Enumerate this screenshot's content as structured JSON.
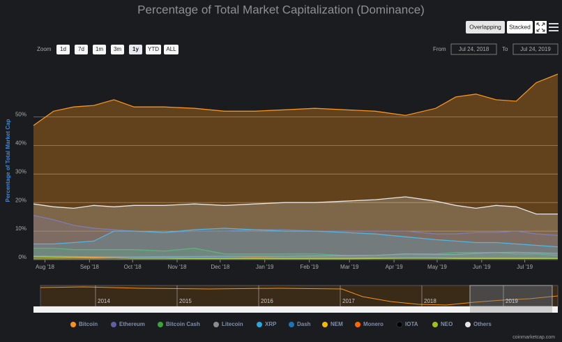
{
  "chart_data": {
    "type": "area",
    "title": "Percentage of Total Market Capitalization (Dominance)",
    "y_label": "Percentage of Total Market Cap",
    "x": [
      "2018-07-24",
      "2018-08-07",
      "2018-08-21",
      "2018-09-04",
      "2018-09-18",
      "2018-10-02",
      "2018-10-23",
      "2018-11-13",
      "2018-12-04",
      "2018-12-25",
      "2019-01-15",
      "2019-02-05",
      "2019-02-26",
      "2019-03-19",
      "2019-04-09",
      "2019-04-30",
      "2019-05-14",
      "2019-05-28",
      "2019-06-11",
      "2019-06-25",
      "2019-07-09",
      "2019-07-24"
    ],
    "xlim": [
      "2018-07-24",
      "2019-07-24"
    ],
    "xticks": [
      {
        "value": "2018-08-01",
        "label": "Aug '18"
      },
      {
        "value": "2018-09-01",
        "label": "Sep '18"
      },
      {
        "value": "2018-10-01",
        "label": "Oct '18"
      },
      {
        "value": "2018-11-01",
        "label": "Nov '18"
      },
      {
        "value": "2018-12-01",
        "label": "Dec '18"
      },
      {
        "value": "2019-01-01",
        "label": "Jan '19"
      },
      {
        "value": "2019-02-01",
        "label": "Feb '19"
      },
      {
        "value": "2019-03-01",
        "label": "Mar '19"
      },
      {
        "value": "2019-04-01",
        "label": "Apr '19"
      },
      {
        "value": "2019-05-01",
        "label": "May '19"
      },
      {
        "value": "2019-06-01",
        "label": "Jun '19"
      },
      {
        "value": "2019-07-01",
        "label": "Jul '19"
      }
    ],
    "ylim": [
      0,
      66.5
    ],
    "yticks": [
      {
        "value": 0,
        "label": "0%"
      },
      {
        "value": 10,
        "label": "10%"
      },
      {
        "value": 20,
        "label": "20%"
      },
      {
        "value": 30,
        "label": "30%"
      },
      {
        "value": 40,
        "label": "40%"
      },
      {
        "value": 50,
        "label": "50%"
      }
    ],
    "grid": true,
    "series": [
      {
        "name": "Bitcoin",
        "color": "#f7931a",
        "values": [
          47,
          52,
          53.5,
          54,
          56,
          53.5,
          53.5,
          53,
          52,
          52,
          52.5,
          53,
          52.5,
          52,
          50.5,
          53,
          57,
          58,
          56,
          55.5,
          62,
          65
        ]
      },
      {
        "name": "Ethereum",
        "color": "#5f5fa8",
        "values": [
          15.5,
          14,
          12,
          11,
          10.5,
          10,
          9.5,
          10,
          10,
          10.5,
          10.5,
          10,
          10,
          10,
          10,
          9,
          9,
          9.5,
          9.5,
          10,
          9,
          8.5
        ]
      },
      {
        "name": "Bitcoin Cash",
        "color": "#3aa33a",
        "values": [
          4,
          4,
          3.5,
          3.5,
          3.5,
          3.5,
          3,
          4,
          2,
          2,
          2,
          2,
          1.5,
          1.5,
          2,
          2,
          2.5,
          2.5,
          2.5,
          2,
          2,
          1.5
        ]
      },
      {
        "name": "Litecoin",
        "color": "#8c8c8c",
        "values": [
          1.2,
          1.2,
          1.1,
          1,
          1,
          1,
          1.1,
          1.1,
          1.2,
          1.2,
          1.2,
          1.3,
          1.4,
          1.5,
          2,
          1.8,
          1.8,
          2.2,
          2.5,
          2.6,
          2.4,
          2.2
        ]
      },
      {
        "name": "XRP",
        "color": "#2aa7e0",
        "values": [
          5.5,
          5.5,
          6,
          6.5,
          10,
          10,
          9.5,
          10.5,
          11,
          10.5,
          10,
          10,
          9.5,
          9,
          8,
          7,
          6.5,
          6,
          6,
          5.5,
          5,
          4.5
        ]
      },
      {
        "name": "Dash",
        "color": "#1c75bc",
        "values": [
          0.9,
          0.8,
          0.8,
          0.8,
          0.8,
          0.8,
          0.8,
          0.8,
          0.8,
          0.7,
          0.7,
          0.6,
          0.6,
          0.6,
          0.7,
          0.7,
          0.6,
          0.6,
          0.5,
          0.4,
          0.4,
          0.4
        ]
      },
      {
        "name": "NEM",
        "color": "#f5b700",
        "values": [
          0.6,
          0.5,
          0.4,
          0.4,
          0.4,
          0.4,
          0.4,
          0.4,
          0.5,
          0.4,
          0.3,
          0.3,
          0.3,
          0.3,
          0.3,
          0.3,
          0.3,
          0.3,
          0.2,
          0.2,
          0.2,
          0.2
        ]
      },
      {
        "name": "Monero",
        "color": "#ff6600",
        "values": [
          0.8,
          0.8,
          0.8,
          0.8,
          0.7,
          0.6,
          0.6,
          0.6,
          0.6,
          0.7,
          0.6,
          0.6,
          0.6,
          0.6,
          0.6,
          0.6,
          0.6,
          0.6,
          0.6,
          0.6,
          0.6,
          0.5
        ]
      },
      {
        "name": "IOTA",
        "color": "#000000",
        "values": [
          0.8,
          0.6,
          0.5,
          0.5,
          0.4,
          0.4,
          0.4,
          0.4,
          0.4,
          0.4,
          0.4,
          0.4,
          0.4,
          0.3,
          0.3,
          0.3,
          0.3,
          0.3,
          0.3,
          0.3,
          0.3,
          0.3
        ]
      },
      {
        "name": "NEO",
        "color": "#9bc31c",
        "values": [
          1,
          0.8,
          0.7,
          0.6,
          0.6,
          0.5,
          0.5,
          0.4,
          0.4,
          0.4,
          0.4,
          0.4,
          0.4,
          0.4,
          0.5,
          0.5,
          0.4,
          0.4,
          0.4,
          0.4,
          0.4,
          0.4
        ]
      },
      {
        "name": "Others",
        "color": "#e6e6e6",
        "values": [
          19.5,
          18.5,
          18,
          19,
          18.5,
          19,
          19,
          19.5,
          19,
          19.5,
          20,
          20,
          20.5,
          21,
          22,
          20.5,
          19,
          18,
          19,
          18.5,
          16,
          16
        ]
      }
    ]
  },
  "controls": {
    "modes": [
      "Overlapping",
      "Stacked"
    ],
    "zoom_label": "Zoom",
    "zoom_buttons": [
      "1d",
      "7d",
      "1m",
      "3m",
      "1y",
      "YTD",
      "ALL"
    ],
    "from_label": "From",
    "from": "Jul 24, 2018",
    "to_label": "To",
    "to": "Jul 24, 2019"
  },
  "navigator": {
    "labels": [
      "2014",
      "2015",
      "2016",
      "2017",
      "2018",
      "2019"
    ]
  },
  "credit": "coinmarketcap.com"
}
